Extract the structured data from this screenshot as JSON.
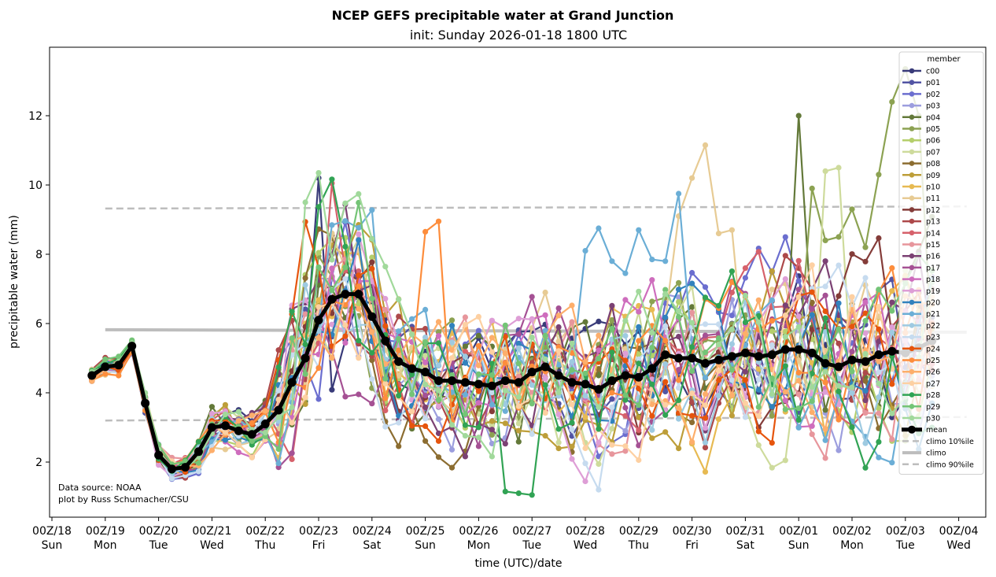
{
  "chart_data": {
    "type": "line",
    "title": "NCEP GEFS precipitable water at Grand Junction",
    "subtitle": "init: Sunday 2026-01-18 1800 UTC",
    "xlabel": "time (UTC)/date",
    "ylabel": "precipitable water (mm)",
    "ylim": [
      0.4,
      13.95
    ],
    "yticks": [
      2,
      4,
      6,
      8,
      10,
      12
    ],
    "xlim_days": [
      -0.05,
      17.4
    ],
    "xticks": [
      {
        "day": 0,
        "line1": "00Z/18",
        "line2": "Sun"
      },
      {
        "day": 1,
        "line1": "00Z/19",
        "line2": "Mon"
      },
      {
        "day": 2,
        "line1": "00Z/20",
        "line2": "Tue"
      },
      {
        "day": 3,
        "line1": "00Z/21",
        "line2": "Wed"
      },
      {
        "day": 4,
        "line1": "00Z/22",
        "line2": "Thu"
      },
      {
        "day": 5,
        "line1": "00Z/23",
        "line2": "Fri"
      },
      {
        "day": 6,
        "line1": "00Z/24",
        "line2": "Sat"
      },
      {
        "day": 7,
        "line1": "00Z/25",
        "line2": "Sun"
      },
      {
        "day": 8,
        "line1": "00Z/26",
        "line2": "Mon"
      },
      {
        "day": 9,
        "line1": "00Z/27",
        "line2": "Tue"
      },
      {
        "day": 10,
        "line1": "00Z/28",
        "line2": "Wed"
      },
      {
        "day": 11,
        "line1": "00Z/29",
        "line2": "Thu"
      },
      {
        "day": 12,
        "line1": "00Z/30",
        "line2": "Fri"
      },
      {
        "day": 13,
        "line1": "00Z/31",
        "line2": "Sat"
      },
      {
        "day": 14,
        "line1": "00Z/01",
        "line2": "Sun"
      },
      {
        "day": 15,
        "line1": "00Z/02",
        "line2": "Mon"
      },
      {
        "day": 16,
        "line1": "00Z/03",
        "line2": "Tue"
      },
      {
        "day": 17,
        "line1": "00Z/04",
        "line2": "Wed"
      }
    ],
    "time_start_day": 0.75,
    "time_step_hours": 6,
    "mean": [
      4.5,
      4.75,
      4.8,
      5.35,
      3.7,
      2.2,
      1.8,
      1.85,
      2.3,
      3.0,
      3.05,
      2.9,
      2.8,
      3.1,
      3.5,
      4.3,
      5.0,
      6.1,
      6.7,
      6.85,
      6.85,
      6.2,
      5.5,
      4.9,
      4.7,
      4.6,
      4.35,
      4.35,
      4.3,
      4.25,
      4.2,
      4.35,
      4.3,
      4.6,
      4.75,
      4.5,
      4.3,
      4.25,
      4.1,
      4.35,
      4.5,
      4.45,
      4.7,
      5.1,
      5.0,
      5.0,
      4.85,
      4.95,
      5.05,
      5.15,
      5.05,
      5.1,
      5.25,
      5.25,
      5.15,
      4.85,
      4.75,
      4.95,
      4.9,
      5.1,
      5.2,
      5.15,
      5.3,
      5.5
    ],
    "climo": {
      "p10": {
        "start": 3.2,
        "end": 3.3
      },
      "median": {
        "start": 5.82,
        "end": 5.75
      },
      "p90": {
        "start": 9.32,
        "end": 9.38
      }
    },
    "members": [
      {
        "name": "c00",
        "color": "#393b79"
      },
      {
        "name": "p01",
        "color": "#5254a3"
      },
      {
        "name": "p02",
        "color": "#6b6ecf"
      },
      {
        "name": "p03",
        "color": "#9c9ede"
      },
      {
        "name": "p04",
        "color": "#637939"
      },
      {
        "name": "p05",
        "color": "#8ca252"
      },
      {
        "name": "p06",
        "color": "#b5cf6b"
      },
      {
        "name": "p07",
        "color": "#cedb9c"
      },
      {
        "name": "p08",
        "color": "#8c6d31"
      },
      {
        "name": "p09",
        "color": "#bd9e39"
      },
      {
        "name": "p10",
        "color": "#e7ba52"
      },
      {
        "name": "p11",
        "color": "#e7cb94"
      },
      {
        "name": "p12",
        "color": "#843c39"
      },
      {
        "name": "p13",
        "color": "#ad494a"
      },
      {
        "name": "p14",
        "color": "#d6616b"
      },
      {
        "name": "p15",
        "color": "#e7969c"
      },
      {
        "name": "p16",
        "color": "#7b4173"
      },
      {
        "name": "p17",
        "color": "#a55194"
      },
      {
        "name": "p18",
        "color": "#ce6dbd"
      },
      {
        "name": "p19",
        "color": "#de9ed6"
      },
      {
        "name": "p20",
        "color": "#3182bd"
      },
      {
        "name": "p21",
        "color": "#6baed6"
      },
      {
        "name": "p22",
        "color": "#9ecae1"
      },
      {
        "name": "p23",
        "color": "#c6dbef"
      },
      {
        "name": "p24",
        "color": "#e6550d"
      },
      {
        "name": "p25",
        "color": "#fd8d3c"
      },
      {
        "name": "p26",
        "color": "#fdae6b"
      },
      {
        "name": "p27",
        "color": "#fdd0a2"
      },
      {
        "name": "p28",
        "color": "#31a354"
      },
      {
        "name": "p29",
        "color": "#74c476"
      },
      {
        "name": "p30",
        "color": "#a1d99b"
      }
    ],
    "member_peaks": {
      "p05": [
        [
          54,
          9.9
        ],
        [
          55,
          8.4
        ],
        [
          56,
          8.5
        ],
        [
          57,
          9.3
        ],
        [
          58,
          8.2
        ],
        [
          59,
          10.3
        ],
        [
          60,
          12.4
        ],
        [
          61,
          13.35
        ],
        [
          62,
          12.0
        ]
      ],
      "p11": [
        [
          44,
          9.1
        ],
        [
          45,
          10.2
        ],
        [
          46,
          11.15
        ],
        [
          47,
          8.6
        ],
        [
          48,
          8.7
        ]
      ],
      "p07": [
        [
          55,
          10.4
        ],
        [
          56,
          10.5
        ]
      ],
      "p21": [
        [
          37,
          8.1
        ],
        [
          38,
          8.75
        ],
        [
          39,
          7.8
        ],
        [
          40,
          7.45
        ],
        [
          41,
          8.7
        ],
        [
          42,
          7.85
        ],
        [
          43,
          7.8
        ],
        [
          44,
          9.75
        ]
      ],
      "p25": [
        [
          25,
          8.65
        ],
        [
          26,
          8.95
        ]
      ],
      "p30": [
        [
          16,
          9.5
        ],
        [
          17,
          10.35
        ]
      ],
      "c00": [
        [
          17,
          10.2
        ]
      ],
      "p14": [
        [
          18,
          10.05
        ]
      ],
      "p04": [
        [
          53,
          12.0
        ]
      ],
      "p28": [
        [
          33,
          1.05
        ],
        [
          32,
          1.1
        ],
        [
          31,
          1.15
        ]
      ]
    },
    "legend": {
      "title": "member",
      "position": "right",
      "extra_entries": [
        "mean",
        "climo 10%ile",
        "climo",
        "climo 90%ile"
      ]
    },
    "annotation": [
      "Data source: NOAA",
      "plot by Russ Schumacher/CSU"
    ]
  }
}
